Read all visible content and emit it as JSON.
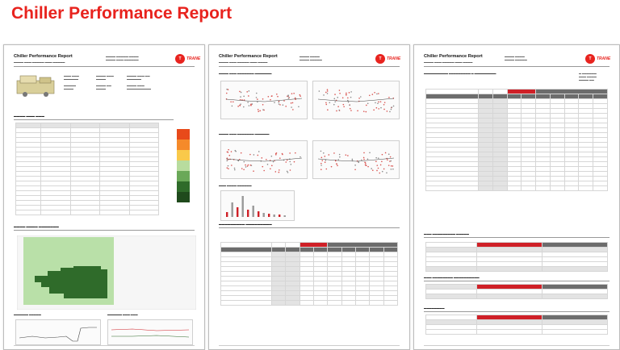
{
  "report_title": "Chiller Performance Report",
  "colors": {
    "brand_red": "#e8231e",
    "dark_green": "#2f6b2a",
    "light_green": "#b9e0a8"
  },
  "pages": [
    {
      "heading": "Chiller Performance Report",
      "logo_text": "TRANE",
      "logo_icon": "trane-logo-icon"
    },
    {
      "heading": "Chiller Performance Report",
      "logo_text": "TRANE",
      "logo_icon": "trane-logo-icon"
    },
    {
      "heading": "Chiller Performance Report",
      "logo_text": "TRANE",
      "logo_icon": "trane-logo-icon"
    }
  ]
}
